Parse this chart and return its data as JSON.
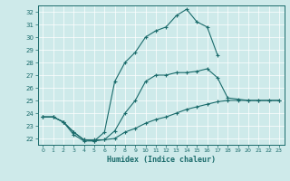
{
  "xlabel": "Humidex (Indice chaleur)",
  "bg_color": "#ceeaea",
  "line_color": "#1a6b6b",
  "grid_color": "#ffffff",
  "xlim": [
    -0.5,
    23.5
  ],
  "ylim": [
    21.5,
    32.5
  ],
  "xticks": [
    0,
    1,
    2,
    3,
    4,
    5,
    6,
    7,
    8,
    9,
    10,
    11,
    12,
    13,
    14,
    15,
    16,
    17,
    18,
    19,
    20,
    21,
    22,
    23
  ],
  "yticks": [
    22,
    23,
    24,
    25,
    26,
    27,
    28,
    29,
    30,
    31,
    32
  ],
  "line1_x": [
    0,
    1,
    2,
    3,
    4,
    5,
    6,
    7,
    8,
    9,
    10,
    11,
    12,
    13,
    14,
    15,
    16,
    17
  ],
  "line1_y": [
    23.7,
    23.7,
    23.3,
    22.3,
    21.8,
    21.8,
    22.5,
    26.5,
    28.0,
    28.8,
    30.0,
    30.5,
    30.8,
    31.7,
    32.2,
    31.2,
    30.8,
    28.6
  ],
  "line2_x": [
    0,
    1,
    2,
    3,
    4,
    5,
    6,
    7,
    8,
    9,
    10,
    11,
    12,
    13,
    14,
    15,
    16,
    17,
    18,
    19,
    20,
    21,
    22,
    23
  ],
  "line2_y": [
    23.7,
    23.7,
    23.3,
    22.5,
    21.9,
    21.8,
    21.9,
    22.6,
    24.0,
    25.0,
    26.5,
    27.0,
    27.0,
    27.2,
    27.2,
    27.3,
    27.5,
    26.8,
    25.2,
    25.1,
    25.0,
    25.0,
    25.0,
    25.0
  ],
  "line3_x": [
    0,
    1,
    2,
    3,
    4,
    5,
    6,
    7,
    8,
    9,
    10,
    11,
    12,
    13,
    14,
    15,
    16,
    17,
    18,
    19,
    20,
    21,
    22,
    23
  ],
  "line3_y": [
    23.7,
    23.7,
    23.3,
    22.5,
    21.9,
    21.9,
    21.9,
    22.0,
    22.5,
    22.8,
    23.2,
    23.5,
    23.7,
    24.0,
    24.3,
    24.5,
    24.7,
    24.9,
    25.0,
    25.0,
    25.0,
    25.0,
    25.0,
    25.0
  ]
}
